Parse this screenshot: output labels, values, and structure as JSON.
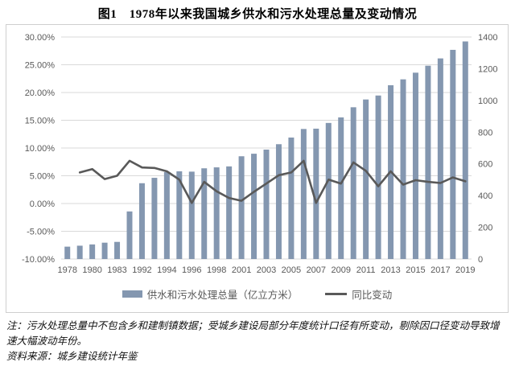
{
  "chart_data": {
    "type": "bar",
    "title": "图1　1978年以来我国城乡供水和污水处理总量及变动情况",
    "categories": [
      "1978",
      "",
      "1980",
      "",
      "1983",
      "",
      "1992",
      "",
      "1994",
      "",
      "1996",
      "",
      "1998",
      "",
      "2001",
      "",
      "2003",
      "",
      "2005",
      "",
      "2007",
      "",
      "2009",
      "",
      "2011",
      "",
      "2013",
      "",
      "2015",
      "",
      "2017",
      "",
      "2019"
    ],
    "series": [
      {
        "name": "供水和污水处理总量（亿立方米）",
        "type": "bar",
        "axis": "right",
        "color": "#8497B0",
        "values": [
          78,
          84,
          92,
          103,
          108,
          300,
          478,
          512,
          548,
          553,
          551,
          572,
          578,
          584,
          648,
          664,
          690,
          724,
          766,
          820,
          822,
          858,
          893,
          957,
          1006,
          1031,
          1096,
          1133,
          1175,
          1219,
          1265,
          1319,
          1372
        ]
      },
      {
        "name": "同比变动",
        "type": "line",
        "axis": "left",
        "color": "#595959",
        "values": [
          null,
          5.6,
          6.2,
          4.4,
          5.0,
          7.7,
          6.5,
          6.4,
          5.8,
          4.3,
          0.1,
          3.9,
          2.2,
          1.0,
          0.5,
          2.1,
          3.6,
          5.1,
          5.6,
          7.7,
          0.1,
          4.3,
          3.6,
          7.4,
          5.9,
          3.1,
          5.8,
          3.4,
          4.2,
          3.9,
          3.7,
          4.7,
          4.0
        ]
      }
    ],
    "left_axis": {
      "min": -10,
      "max": 30,
      "step": 5,
      "tick_labels": [
        "30.00%",
        "25.00%",
        "20.00%",
        "15.00%",
        "10.00%",
        "5.00%",
        "0.00%",
        "-5.00%",
        "-10.00%"
      ]
    },
    "right_axis": {
      "min": 0,
      "max": 1400,
      "step": 200,
      "tick_labels": [
        "1400",
        "1200",
        "1000",
        "800",
        "600",
        "400",
        "200",
        "0"
      ]
    },
    "grid": true,
    "legend_position": "bottom",
    "gridline_color": "#d9d9d9",
    "tick_color": "#595959"
  },
  "footnote": {
    "note": "注：污水处理总量中不包含乡和建制镇数据；受城乡建设局部分年度统计口径有所变动，剔除因口径变动导致增速大幅波动年份。",
    "source": "资料来源：城乡建设统计年鉴"
  }
}
